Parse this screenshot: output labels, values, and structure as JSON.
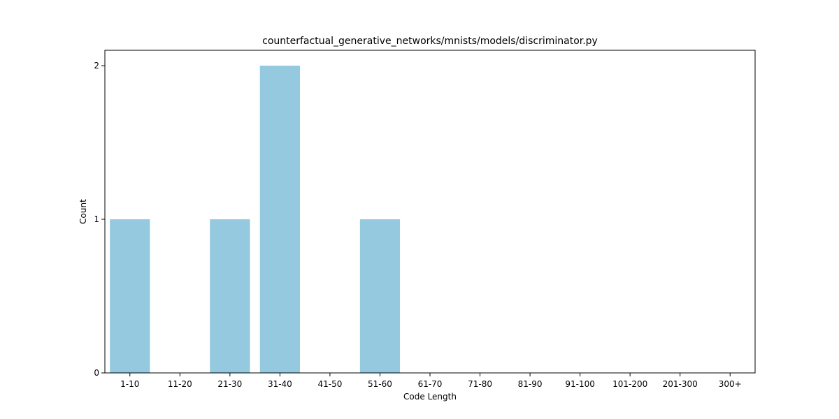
{
  "chart_data": {
    "type": "bar",
    "title": "counterfactual_generative_networks/mnists/models/discriminator.py",
    "xlabel": "Code Length",
    "ylabel": "Count",
    "categories": [
      "1-10",
      "11-20",
      "21-30",
      "31-40",
      "41-50",
      "51-60",
      "61-70",
      "71-80",
      "81-90",
      "91-100",
      "101-200",
      "201-300",
      "300+"
    ],
    "values": [
      1,
      0,
      1,
      2,
      0,
      1,
      0,
      0,
      0,
      0,
      0,
      0,
      0
    ],
    "ylim": [
      0,
      2.1
    ],
    "yticks": [
      0,
      1,
      2
    ],
    "grid": false,
    "bar_color": "#95c9df"
  }
}
